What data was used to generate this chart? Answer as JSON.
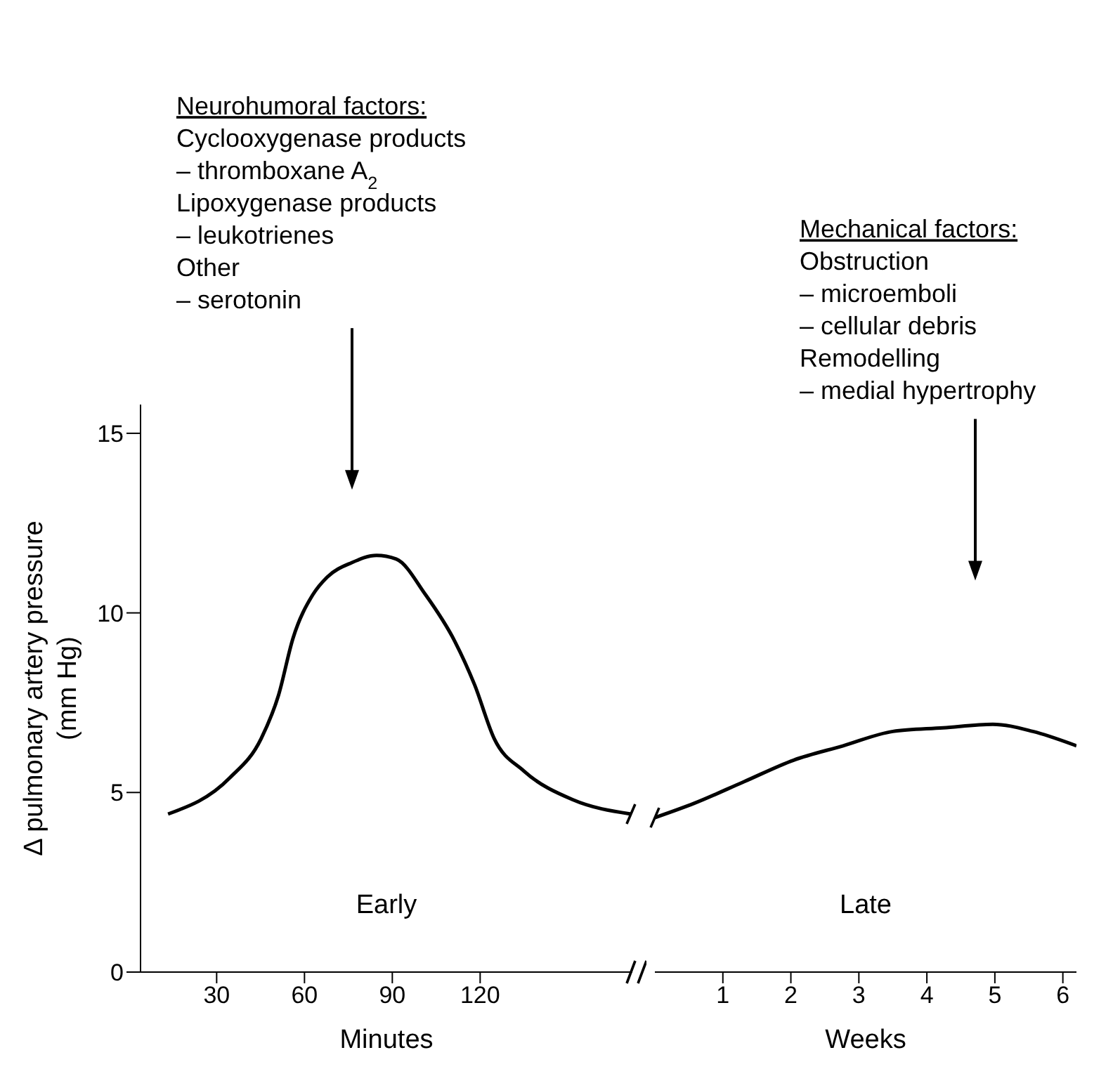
{
  "chart_data": [
    {
      "type": "line",
      "ylabel": "Δ pulmonary artery pressure\n(mm Hg)",
      "xlabel": "Minutes",
      "color": "#000000",
      "marker": "none",
      "line_style": "solid",
      "x": [
        13.4,
        34.4,
        45.2,
        51.1,
        56.1,
        62.8,
        67.8,
        76.2,
        84.6,
        91.3,
        101.4,
        111.4,
        118.1,
        124.8,
        134.9,
        151.6,
        171.5
      ],
      "values": [
        4.4,
        5.4,
        6.5,
        7.7,
        9.3,
        10.5,
        11.0,
        11.4,
        11.6,
        11.5,
        10.5,
        9.2,
        8.0,
        6.5,
        5.6,
        4.8,
        4.4
      ],
      "xlim": [
        4,
        172
      ],
      "xticks": [
        30,
        60,
        90,
        120
      ],
      "ylim": [
        0,
        15.8
      ],
      "yticks": [
        0,
        5,
        10,
        15
      ],
      "annotations": [
        "Neurohumoral factors:\nCyclooxygenase products\n– thromboxane A$_{2}$\nLipoxygenase products\n– leukotrienes\nOther\n– serotonin",
        "Early"
      ]
    },
    {
      "type": "line",
      "xlabel": "Weeks",
      "color": "#000000",
      "marker": "none",
      "line_style": "solid",
      "tick_labels": "x",
      "x": [
        0.0,
        0.58,
        1.31,
        2.04,
        2.77,
        3.5,
        4.24,
        4.97,
        5.56,
        6.2
      ],
      "values": [
        4.3,
        4.7,
        5.3,
        5.9,
        6.3,
        6.7,
        6.8,
        6.9,
        6.7,
        6.3
      ],
      "xlim": [
        0,
        6.2
      ],
      "xticks": [
        1,
        2,
        3,
        4,
        5,
        6
      ],
      "ylim": [
        0,
        15
      ],
      "yticks": [
        0,
        5,
        10,
        15
      ],
      "annotations": [
        "Mechanical factors:\nObstruction\n– microemboli\n– cellular debris\nRemodelling\n– medial hypertrophy",
        "Late"
      ]
    }
  ]
}
